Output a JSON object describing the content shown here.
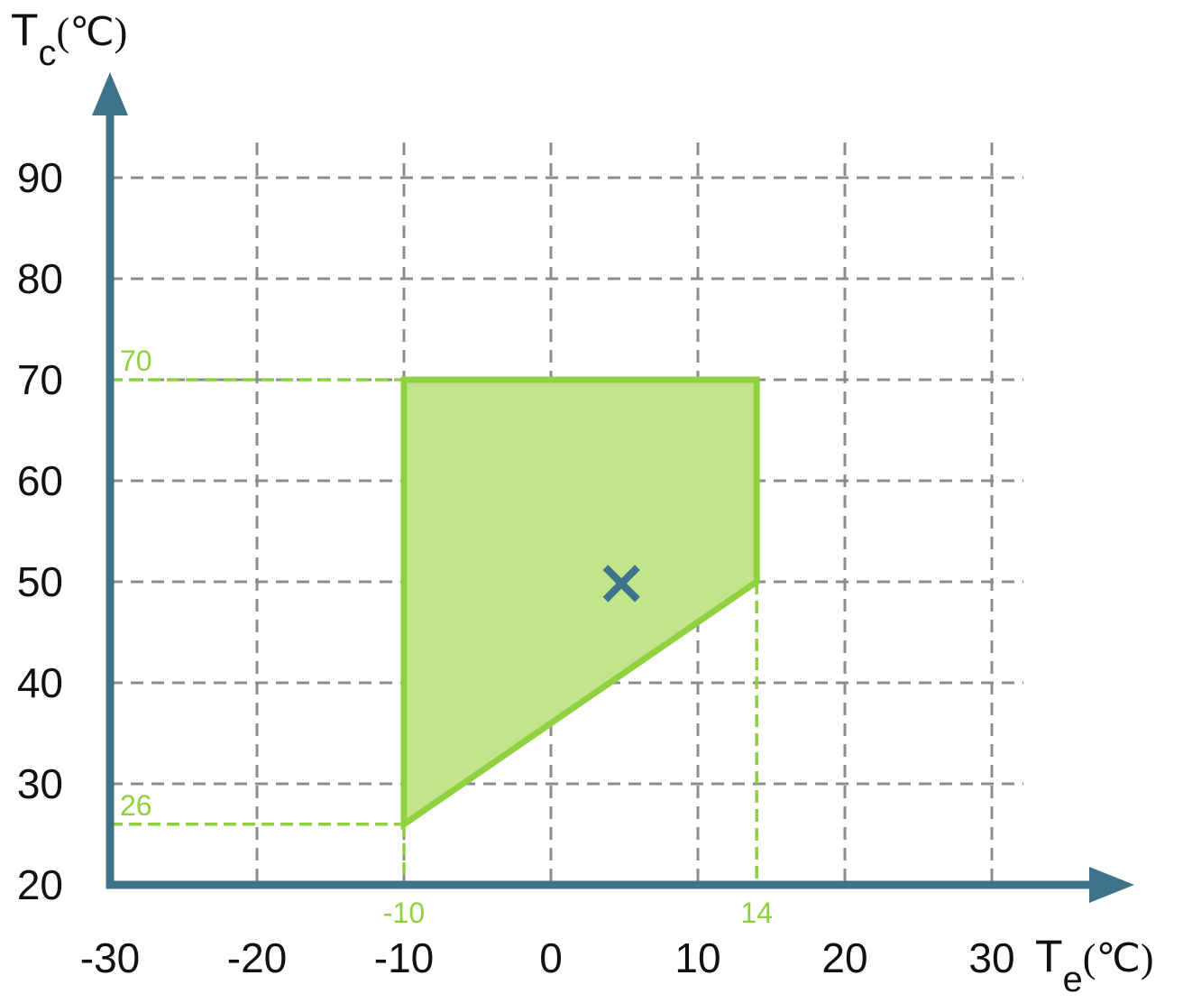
{
  "chart_data": {
    "type": "area",
    "grid": true,
    "xlim": [
      -30,
      30
    ],
    "ylim": [
      20,
      90
    ],
    "x_ticks": [
      "-30",
      "-20",
      "-10",
      "0",
      "10",
      "20",
      "30"
    ],
    "y_ticks": [
      "20",
      "30",
      "40",
      "50",
      "60",
      "70",
      "80",
      "90"
    ],
    "x_tick_values": [
      -30,
      -20,
      -10,
      0,
      10,
      20,
      30
    ],
    "y_tick_values": [
      20,
      30,
      40,
      50,
      60,
      70,
      80,
      90
    ],
    "xlabel": {
      "main": "T",
      "sub": "e",
      "unit": "(℃)"
    },
    "ylabel": {
      "main": "T",
      "sub": "c",
      "unit": "(℃)"
    },
    "region": {
      "vertices": [
        {
          "x": -10,
          "y": 26
        },
        {
          "x": -10,
          "y": 70
        },
        {
          "x": 14,
          "y": 70
        },
        {
          "x": 14,
          "y": 50
        }
      ],
      "fill_color": "#c2e48a",
      "line_color": "#8fd13f"
    },
    "marker": {
      "x": 4.8,
      "y": 50,
      "symbol": "×",
      "color": "#3e7389"
    },
    "annotations": {
      "y_70": {
        "text": "70",
        "x": -30,
        "y": 70
      },
      "y_26": {
        "text": "26",
        "x": -30,
        "y": 26
      },
      "x_minus10": {
        "text": "-10",
        "x": -10,
        "y": 20
      },
      "x_14": {
        "text": "14",
        "x": 14,
        "y": 20
      }
    },
    "colors": {
      "axis": "#3e7389",
      "grid": "#8c8c8c",
      "annotation": "#8fd13f"
    }
  }
}
